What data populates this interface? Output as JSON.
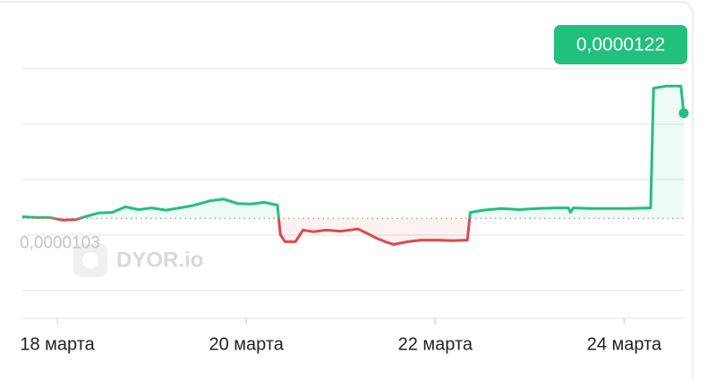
{
  "chart_data": {
    "type": "line",
    "x": [
      17.63,
      17.77,
      17.91,
      18.06,
      18.2,
      18.29,
      18.44,
      18.58,
      18.72,
      18.86,
      19.0,
      19.15,
      19.29,
      19.43,
      19.62,
      19.76,
      19.91,
      20.05,
      20.19,
      20.33,
      20.36,
      20.41,
      20.52,
      20.6,
      20.71,
      20.85,
      21.0,
      21.18,
      21.28,
      21.37,
      21.47,
      21.56,
      21.71,
      21.85,
      22.04,
      22.18,
      22.34,
      22.37,
      22.51,
      22.7,
      22.89,
      23.08,
      23.27,
      23.41,
      23.43,
      23.46,
      23.65,
      23.84,
      24.03,
      24.28,
      24.31,
      24.45,
      24.6,
      24.63
    ],
    "values": [
      1.033e-05,
      1.032e-05,
      1.032e-05,
      1.027e-05,
      1.028e-05,
      1.033e-05,
      1.04e-05,
      1.041e-05,
      1.051e-05,
      1.046e-05,
      1.049e-05,
      1.045e-05,
      1.049e-05,
      1.053e-05,
      1.062e-05,
      1.065e-05,
      1.057e-05,
      1.056e-05,
      1.059e-05,
      1.054e-05,
      1.001e-05,
      9.88e-06,
      9.88e-06,
      1.009e-05,
      1.006e-05,
      1.009e-05,
      1.007e-05,
      1.011e-05,
      1.003e-05,
      9.95e-06,
      9.88e-06,
      9.83e-06,
      9.88e-06,
      9.91e-06,
      9.91e-06,
      9.9e-06,
      9.91e-06,
      1.041e-05,
      1.045e-05,
      1.048e-05,
      1.046e-05,
      1.048e-05,
      1.049e-05,
      1.049e-05,
      1.041e-05,
      1.049e-05,
      1.048e-05,
      1.048e-05,
      1.048e-05,
      1.049e-05,
      1.265e-05,
      1.269e-05,
      1.269e-05,
      1.22e-05
    ],
    "color_up": "#21c07c",
    "color_down": "#e0474c",
    "baseline": {
      "value": 1.03e-05,
      "label": "0,0000103"
    },
    "last_price": {
      "value": 1.22e-05,
      "label": "0,0000122"
    },
    "watermark": "DYOR.io",
    "xlim": [
      17.63,
      24.64
    ],
    "xticks": [
      {
        "value": 18,
        "label": "18 марта"
      },
      {
        "value": 20,
        "label": "20 марта"
      },
      {
        "value": 22,
        "label": "22 марта"
      },
      {
        "value": 24,
        "label": "24 марта"
      }
    ],
    "ylim": [
      8.5e-06,
      1.4e-05
    ],
    "yticks": [
      9e-06,
      1e-05,
      1.1e-05,
      1.2e-05,
      1.3e-05
    ],
    "grid": true
  }
}
